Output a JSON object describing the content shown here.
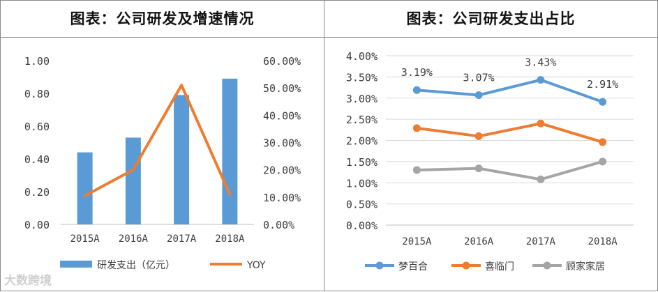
{
  "watermark": "大数跨境",
  "colors": {
    "blue": "#5b9bd5",
    "orange": "#ed7d31",
    "gray": "#a5a5a5",
    "grid": "#d9d9d9"
  },
  "chart_data": [
    {
      "type": "bar+line",
      "title": "图表：公司研发及增速情况",
      "categories": [
        "2015A",
        "2016A",
        "2017A",
        "2018A"
      ],
      "series": [
        {
          "name": "研发支出（亿元）",
          "type": "bar",
          "axis": "left",
          "values": [
            0.44,
            0.53,
            0.79,
            0.89
          ]
        },
        {
          "name": "YOY",
          "type": "line",
          "axis": "right",
          "values": [
            0.105,
            0.2,
            0.51,
            0.11
          ]
        }
      ],
      "y_left": {
        "min": 0,
        "max": 1.0,
        "step": 0.2,
        "ticks": [
          "0.00",
          "0.20",
          "0.40",
          "0.60",
          "0.80",
          "1.00"
        ]
      },
      "y_right": {
        "min": 0,
        "max": 0.6,
        "step": 0.1,
        "ticks": [
          "0.00%",
          "10.00%",
          "20.00%",
          "30.00%",
          "40.00%",
          "50.00%",
          "60.00%"
        ]
      },
      "grid": false,
      "legend": "bottom"
    },
    {
      "type": "line",
      "title": "图表：公司研发支出占比",
      "categories": [
        "2015A",
        "2016A",
        "2017A",
        "2018A"
      ],
      "series": [
        {
          "name": "梦百合",
          "values": [
            0.0319,
            0.0307,
            0.0343,
            0.0291
          ],
          "labels": [
            "3.19%",
            "3.07%",
            "3.43%",
            "2.91%"
          ]
        },
        {
          "name": "喜临门",
          "values": [
            0.0229,
            0.021,
            0.024,
            0.0196
          ]
        },
        {
          "name": "顾家家居",
          "values": [
            0.013,
            0.0134,
            0.0108,
            0.015
          ]
        }
      ],
      "y": {
        "min": 0,
        "max": 0.04,
        "step": 0.005,
        "ticks": [
          "0.00%",
          "0.50%",
          "1.00%",
          "1.50%",
          "2.00%",
          "2.50%",
          "3.00%",
          "3.50%",
          "4.00%"
        ]
      },
      "grid": true,
      "legend": "bottom"
    }
  ]
}
